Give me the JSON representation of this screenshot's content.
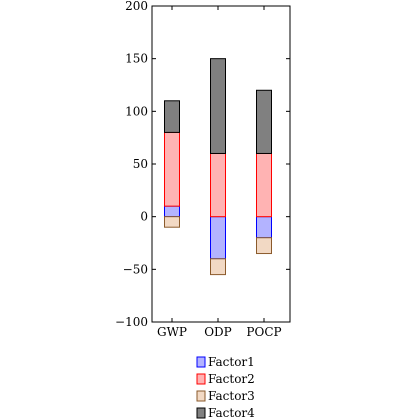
{
  "chart_data": {
    "type": "bar",
    "stacked": true,
    "categories": [
      "GWP",
      "ODP",
      "POCP"
    ],
    "ylim": [
      -100,
      200
    ],
    "yticks": [
      -100,
      -50,
      0,
      50,
      100,
      150,
      200
    ],
    "ytick_labels": [
      "−100",
      "−50",
      "0",
      "50",
      "100",
      "150",
      "200"
    ],
    "grid": false,
    "legend_position": "bottom",
    "series": [
      {
        "name": "Factor1",
        "values": [
          10,
          -40,
          -20
        ],
        "fill": "#b3b3ff",
        "stroke": "#0000ff"
      },
      {
        "name": "Factor2",
        "values": [
          70,
          60,
          60
        ],
        "fill": "#ffb3b3",
        "stroke": "#ff0000"
      },
      {
        "name": "Factor3",
        "values": [
          -10,
          -15,
          -15
        ],
        "fill": "#f2d9c4",
        "stroke": "#8b5a2b"
      },
      {
        "name": "Factor4",
        "values": [
          30,
          90,
          60
        ],
        "fill": "#808080",
        "stroke": "#000000"
      }
    ]
  }
}
